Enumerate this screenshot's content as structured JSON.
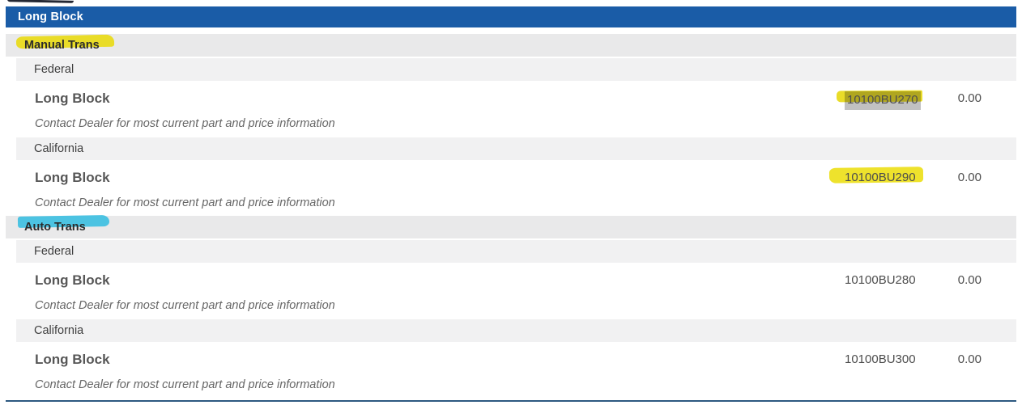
{
  "header": {
    "title": "Long Block"
  },
  "colors": {
    "header_bg": "#1a5ca7",
    "section_row_bg": "#e9e9ea",
    "region_row_bg": "#f1f1f2",
    "yellow_marker": "#e9dc28",
    "cyan_marker": "#4cc3e2",
    "selection_gray": "#c1c1c1",
    "bottom_divider": "#2d5981"
  },
  "sections": [
    {
      "label": "Manual Trans",
      "marker": "yellow",
      "regions": [
        {
          "label": "Federal",
          "item": {
            "name": "Long Block",
            "part_number": "10100BU270",
            "price": "0.00",
            "part_marker": "selected-plus-yellow",
            "note": "Contact Dealer for most current part and price information"
          }
        },
        {
          "label": "California",
          "item": {
            "name": "Long Block",
            "part_number": "10100BU290",
            "price": "0.00",
            "part_marker": "yellow",
            "note": "Contact Dealer for most current part and price information"
          }
        }
      ]
    },
    {
      "label": "Auto Trans",
      "marker": "cyan",
      "regions": [
        {
          "label": "Federal",
          "item": {
            "name": "Long Block",
            "part_number": "10100BU280",
            "price": "0.00",
            "part_marker": "none",
            "note": "Contact Dealer for most current part and price information"
          }
        },
        {
          "label": "California",
          "item": {
            "name": "Long Block",
            "part_number": "10100BU300",
            "price": "0.00",
            "part_marker": "none",
            "note": "Contact Dealer for most current part and price information"
          }
        }
      ]
    }
  ]
}
